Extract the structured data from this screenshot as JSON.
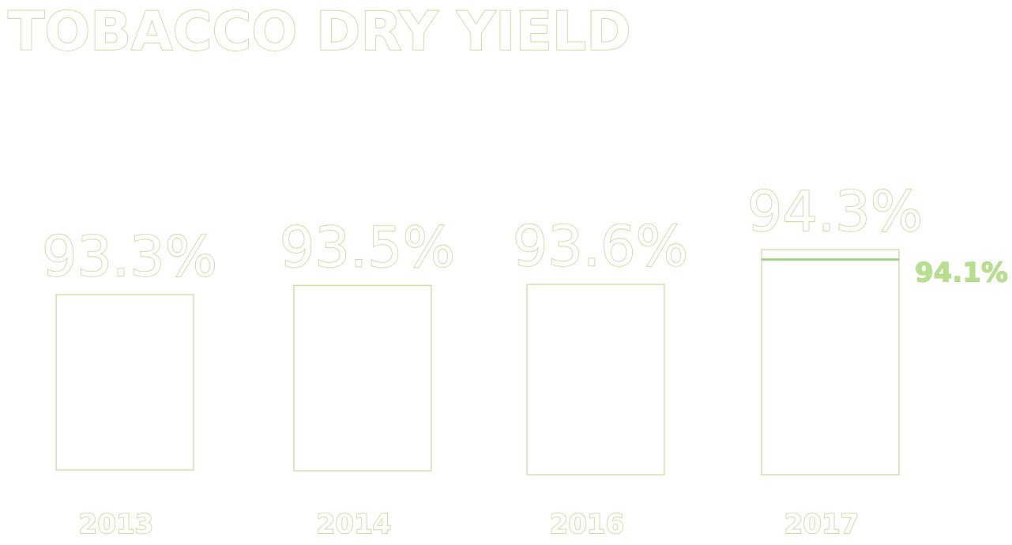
{
  "chart_data": {
    "type": "bar",
    "title": "TOBACCO DRY YIELD",
    "categories": [
      "2013",
      "2014",
      "2016",
      "2017"
    ],
    "values": [
      93.3,
      93.5,
      93.6,
      94.3
    ],
    "value_labels": [
      "93.3%",
      "93.5%",
      "93.6%",
      "94.3%"
    ],
    "target": {
      "category": "2017",
      "value": 94.1,
      "label": "94.1%"
    },
    "xlabel": "",
    "ylabel": "",
    "grid": false,
    "legend": "none",
    "colors": {
      "outline": "#b9cf86",
      "bar_outline": "#c9d9a0",
      "target": "#a9cf8a"
    }
  }
}
